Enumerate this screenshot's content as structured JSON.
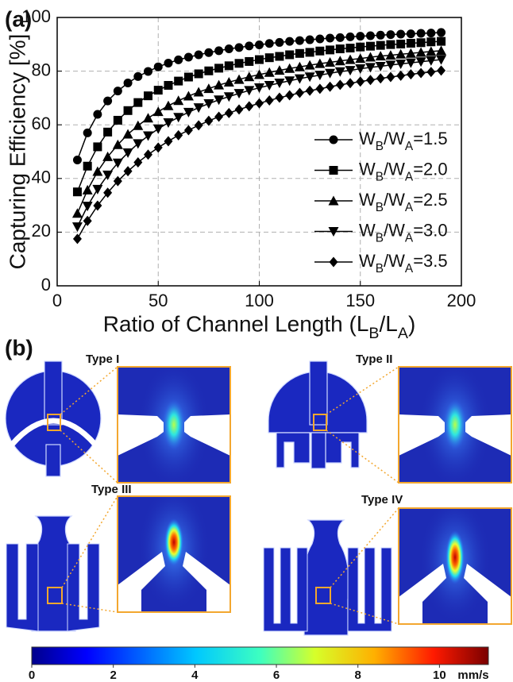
{
  "chart_data": {
    "type": "line",
    "panel_label": "(a)",
    "xlabel": "Ratio of Channel Length (LB/LA)",
    "ylabel": "Capturing Efficiency [%]",
    "x": [
      10,
      15,
      20,
      25,
      30,
      35,
      40,
      45,
      50,
      55,
      60,
      65,
      70,
      75,
      80,
      85,
      90,
      95,
      100,
      105,
      110,
      115,
      120,
      125,
      130,
      135,
      140,
      145,
      150,
      155,
      160,
      165,
      170,
      175,
      180,
      185,
      190
    ],
    "xlim": [
      0,
      200
    ],
    "xticks": [
      0,
      50,
      100,
      150,
      200
    ],
    "ylim": [
      0,
      100
    ],
    "yticks": [
      0,
      20,
      40,
      60,
      80,
      100
    ],
    "grid": true,
    "legend": "lower right",
    "series": [
      {
        "name": "WB/WA=1.5",
        "color": "#000000",
        "marker": "circle",
        "values": [
          46.9,
          57.0,
          63.9,
          68.9,
          72.6,
          75.6,
          78.0,
          79.9,
          81.6,
          83.0,
          84.2,
          85.2,
          86.1,
          86.9,
          87.6,
          88.3,
          88.8,
          89.4,
          89.8,
          90.3,
          90.7,
          91.1,
          91.4,
          91.7,
          92.0,
          92.3,
          92.5,
          92.8,
          93.0,
          93.2,
          93.4,
          93.6,
          93.8,
          93.9,
          94.1,
          94.2,
          94.4
        ]
      },
      {
        "name": "WB/WA=2.0",
        "color": "#000000",
        "marker": "square",
        "values": [
          35.0,
          44.6,
          51.8,
          57.3,
          61.7,
          65.3,
          68.3,
          70.8,
          72.9,
          74.7,
          76.3,
          77.8,
          79.0,
          80.1,
          81.1,
          82.0,
          82.9,
          83.6,
          84.3,
          85.0,
          85.5,
          86.1,
          86.6,
          87.0,
          87.5,
          87.9,
          88.3,
          88.6,
          89.0,
          89.3,
          89.6,
          89.9,
          90.1,
          90.4,
          90.6,
          90.9,
          91.1
        ]
      },
      {
        "name": "WB/WA=2.5",
        "color": "#000000",
        "marker": "triangle-up",
        "values": [
          27.0,
          35.7,
          42.6,
          48.1,
          52.6,
          56.5,
          59.7,
          62.5,
          64.9,
          67.1,
          69.0,
          70.7,
          72.2,
          73.5,
          74.8,
          75.9,
          76.9,
          77.9,
          78.7,
          79.5,
          80.3,
          81.0,
          81.6,
          82.2,
          82.8,
          83.3,
          83.8,
          84.3,
          84.7,
          85.2,
          85.6,
          85.9,
          86.3,
          86.6,
          87.0,
          87.3,
          87.6
        ]
      },
      {
        "name": "WB/WA=3.0",
        "color": "#000000",
        "marker": "triangle-down",
        "values": [
          22.0,
          29.7,
          36.0,
          41.3,
          45.8,
          49.6,
          53.0,
          55.9,
          58.5,
          60.8,
          62.8,
          64.7,
          66.4,
          67.9,
          69.3,
          70.5,
          71.7,
          72.8,
          73.8,
          74.7,
          75.6,
          76.4,
          77.2,
          77.9,
          78.5,
          79.2,
          79.8,
          80.3,
          80.9,
          81.4,
          81.8,
          82.3,
          82.7,
          83.1,
          83.5,
          83.9,
          84.3
        ]
      },
      {
        "name": "WB/WA=3.5",
        "color": "#000000",
        "marker": "diamond",
        "values": [
          17.5,
          24.2,
          29.9,
          34.7,
          39.0,
          42.7,
          46.0,
          48.9,
          51.5,
          53.9,
          56.1,
          58.0,
          59.8,
          61.5,
          63.0,
          64.4,
          65.7,
          66.9,
          68.0,
          69.1,
          70.1,
          71.0,
          71.9,
          72.7,
          73.4,
          74.2,
          74.9,
          75.5,
          76.1,
          76.7,
          77.3,
          77.8,
          78.3,
          78.8,
          79.3,
          79.7,
          80.2
        ]
      }
    ]
  },
  "figure_b": {
    "panel_label": "(b)",
    "panels": [
      {
        "label": "Type I"
      },
      {
        "label": "Type II"
      },
      {
        "label": "Type III"
      },
      {
        "label": "Type IV"
      }
    ],
    "colorbar": {
      "lim": [
        0,
        11.2
      ],
      "ticks": [
        0,
        2,
        4,
        6,
        8,
        10
      ],
      "unit": "mm/s"
    }
  }
}
